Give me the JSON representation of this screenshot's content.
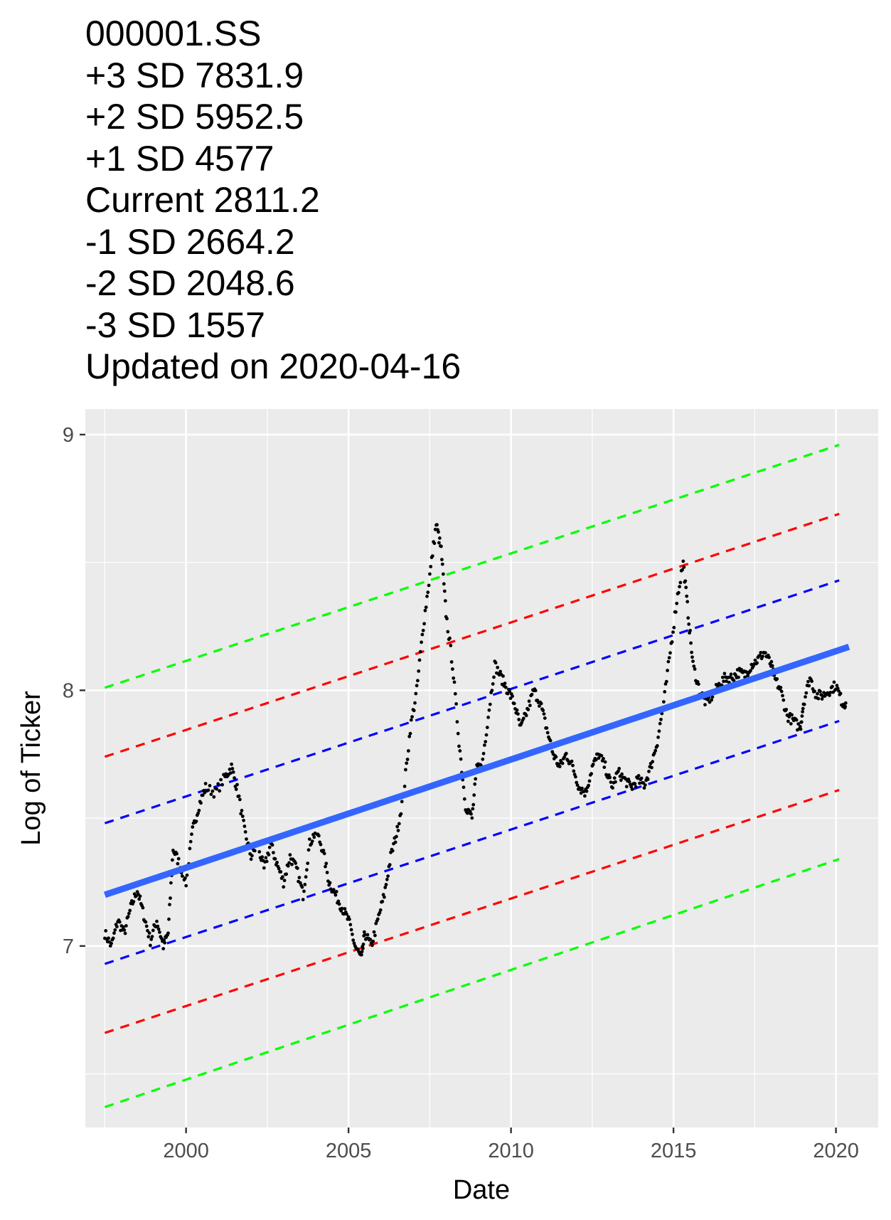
{
  "chart_data": {
    "type": "scatter",
    "title_lines": [
      "000001.SS",
      "+3 SD 7831.9",
      "+2 SD 5952.5",
      "+1 SD 4577",
      "Current 2811.2",
      "-1 SD 2664.2",
      "-2 SD 2048.6",
      "-3 SD 1557",
      "Updated on 2020-04-16"
    ],
    "xlabel": "Date",
    "ylabel": "Log of Ticker",
    "x_ticks": [
      "2000",
      "2005",
      "2010",
      "2015",
      "2020"
    ],
    "y_ticks": [
      "7",
      "8",
      "9"
    ],
    "xlim": [
      1996.9,
      2021.3
    ],
    "ylim": [
      6.29,
      9.1
    ],
    "grid": true,
    "background": "#ebebeb",
    "trend": {
      "name": "trend",
      "color": "#3366ff",
      "x": [
        1997.5,
        2020.4
      ],
      "y": [
        7.2,
        8.17
      ]
    },
    "bands": [
      {
        "label": "+3 SD",
        "color": "#00ff00",
        "x": [
          1997.5,
          2020.1
        ],
        "y": [
          8.01,
          8.96
        ]
      },
      {
        "label": "+2 SD",
        "color": "#ff0000",
        "x": [
          1997.5,
          2020.1
        ],
        "y": [
          7.74,
          8.69
        ]
      },
      {
        "label": "+1 SD",
        "color": "#0000ff",
        "x": [
          1997.5,
          2020.1
        ],
        "y": [
          7.48,
          8.43
        ]
      },
      {
        "label": "-1 SD",
        "color": "#0000ff",
        "x": [
          1997.5,
          2020.1
        ],
        "y": [
          6.93,
          7.88
        ]
      },
      {
        "label": "-2 SD",
        "color": "#ff0000",
        "x": [
          1997.5,
          2020.1
        ],
        "y": [
          6.66,
          7.61
        ]
      },
      {
        "label": "-3 SD",
        "color": "#00ff00",
        "x": [
          1997.5,
          2020.1
        ],
        "y": [
          6.37,
          7.34
        ]
      }
    ],
    "series": [
      {
        "color": "#000000",
        "x": [
          1997.5,
          1997.7,
          1997.9,
          1998.1,
          1998.3,
          1998.5,
          1998.7,
          1998.9,
          1999.1,
          1999.3,
          1999.45,
          1999.6,
          1999.8,
          2000.0,
          2000.2,
          2000.4,
          2000.6,
          2000.9,
          2001.2,
          2001.4,
          2001.6,
          2001.8,
          2002.0,
          2002.2,
          2002.4,
          2002.6,
          2002.8,
          2003.0,
          2003.2,
          2003.4,
          2003.6,
          2003.8,
          2004.0,
          2004.2,
          2004.4,
          2004.6,
          2004.8,
          2005.0,
          2005.2,
          2005.4,
          2005.5,
          2005.7,
          2005.9,
          2006.1,
          2006.3,
          2006.5,
          2006.7,
          2006.9,
          2007.1,
          2007.3,
          2007.5,
          2007.7,
          2007.85,
          2008.0,
          2008.2,
          2008.4,
          2008.6,
          2008.8,
          2008.95,
          2009.1,
          2009.3,
          2009.5,
          2009.7,
          2009.9,
          2010.1,
          2010.3,
          2010.5,
          2010.7,
          2010.9,
          2011.1,
          2011.3,
          2011.5,
          2011.7,
          2011.9,
          2012.1,
          2012.3,
          2012.5,
          2012.7,
          2012.9,
          2013.1,
          2013.3,
          2013.5,
          2013.7,
          2013.9,
          2014.1,
          2014.3,
          2014.5,
          2014.7,
          2014.9,
          2015.1,
          2015.3,
          2015.45,
          2015.6,
          2015.8,
          2016.0,
          2016.2,
          2016.4,
          2016.6,
          2016.8,
          2017.0,
          2017.2,
          2017.4,
          2017.6,
          2017.8,
          2018.0,
          2018.1,
          2018.3,
          2018.5,
          2018.7,
          2018.9,
          2019.0,
          2019.2,
          2019.4,
          2019.6,
          2019.8,
          2020.0,
          2020.2,
          2020.3
        ],
        "y": [
          7.05,
          7.0,
          7.1,
          7.05,
          7.15,
          7.22,
          7.12,
          7.02,
          7.1,
          7.0,
          7.05,
          7.38,
          7.32,
          7.25,
          7.45,
          7.55,
          7.62,
          7.6,
          7.66,
          7.7,
          7.6,
          7.45,
          7.35,
          7.4,
          7.3,
          7.4,
          7.32,
          7.25,
          7.35,
          7.3,
          7.2,
          7.4,
          7.45,
          7.38,
          7.25,
          7.2,
          7.15,
          7.1,
          7.0,
          6.95,
          7.05,
          7.0,
          7.1,
          7.2,
          7.35,
          7.45,
          7.6,
          7.85,
          8.0,
          8.25,
          8.45,
          8.65,
          8.55,
          8.3,
          8.1,
          7.8,
          7.55,
          7.5,
          7.7,
          7.7,
          7.9,
          8.1,
          8.05,
          8.0,
          7.95,
          7.85,
          7.92,
          8.0,
          7.95,
          7.85,
          7.75,
          7.7,
          7.75,
          7.7,
          7.62,
          7.6,
          7.7,
          7.75,
          7.7,
          7.62,
          7.68,
          7.65,
          7.62,
          7.65,
          7.63,
          7.7,
          7.8,
          7.95,
          8.15,
          8.35,
          8.5,
          8.3,
          8.1,
          8.0,
          7.95,
          7.98,
          8.02,
          8.05,
          8.05,
          8.07,
          8.06,
          8.1,
          8.12,
          8.15,
          8.1,
          8.05,
          8.0,
          7.9,
          7.88,
          7.85,
          7.95,
          8.05,
          7.98,
          7.98,
          8.0,
          8.02,
          7.95,
          7.95
        ]
      }
    ]
  }
}
